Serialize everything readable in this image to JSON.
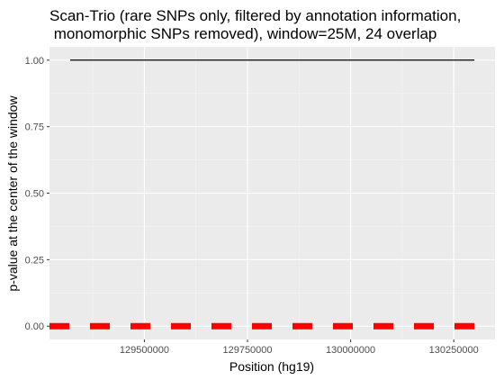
{
  "chart_data": {
    "type": "line",
    "title_lines": [
      "Scan-Trio (rare SNPs only, filtered by annotation information,",
      " monomorphic SNPs removed), window=25M, 24 overlap"
    ],
    "xlabel": "Position (hg19)",
    "ylabel": "p-value at the center of the window",
    "xlim": [
      129270000,
      130350000
    ],
    "ylim": [
      -0.05,
      1.05
    ],
    "x_ticks": [
      129500000,
      129750000,
      130000000,
      130250000
    ],
    "x_tick_labels": [
      "129500000",
      "129750000",
      "130000000",
      "130250000"
    ],
    "y_ticks": [
      0.0,
      0.25,
      0.5,
      0.75,
      1.0
    ],
    "y_tick_labels": [
      "0.00",
      "0.25",
      "0.50",
      "0.75",
      "1.00"
    ],
    "grid": true,
    "series": [
      {
        "style": "solid",
        "color": "#000000",
        "x": [
          129320000,
          130300000
        ],
        "y": [
          1.0,
          1.0
        ]
      },
      {
        "style": "dashed",
        "color": "#ff0000",
        "x": [
          129270000,
          130300000
        ],
        "y": [
          0.0,
          0.0
        ]
      }
    ]
  }
}
